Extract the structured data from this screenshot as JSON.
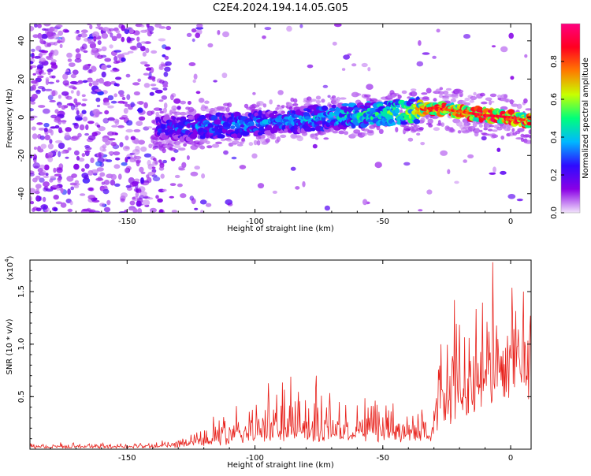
{
  "title": "C2E4.2024.194.14.05.G05",
  "chart_data": [
    {
      "type": "heatmap",
      "xlabel": "Height of straight line (km)",
      "ylabel": "Frequency (Hz)",
      "xlim": [
        -188,
        8
      ],
      "ylim": [
        -50,
        49
      ],
      "x_ticks": [
        -150,
        -100,
        -50,
        0
      ],
      "y_ticks": [
        -40,
        -20,
        0,
        20,
        40
      ],
      "colorbar": {
        "label": "Normalized spectral amplitude",
        "range": [
          0.0,
          1.0
        ],
        "ticks": [
          0.0,
          0.2,
          0.4,
          0.6,
          0.8
        ],
        "colormap": "rainbow",
        "stops": [
          "#f2e4fb",
          "#8a00e6",
          "#2e0bff",
          "#00b8ff",
          "#00ff7a",
          "#c8ff00",
          "#ff7a00",
          "#ff0020",
          "#ff0080"
        ]
      },
      "signal_trace": [
        {
          "x": -140,
          "y": -6,
          "a": 0.28
        },
        {
          "x": -130,
          "y": -6,
          "a": 0.32
        },
        {
          "x": -120,
          "y": -5,
          "a": 0.36
        },
        {
          "x": -110,
          "y": -4,
          "a": 0.38
        },
        {
          "x": -100,
          "y": -3,
          "a": 0.38
        },
        {
          "x": -90,
          "y": -2,
          "a": 0.36
        },
        {
          "x": -80,
          "y": -1,
          "a": 0.38
        },
        {
          "x": -70,
          "y": 0,
          "a": 0.42
        },
        {
          "x": -60,
          "y": 1,
          "a": 0.48
        },
        {
          "x": -50,
          "y": 2,
          "a": 0.52
        },
        {
          "x": -40,
          "y": 3,
          "a": 0.6
        },
        {
          "x": -30,
          "y": 5,
          "a": 0.88
        },
        {
          "x": -20,
          "y": 3,
          "a": 0.82
        },
        {
          "x": -10,
          "y": 1,
          "a": 0.92
        },
        {
          "x": 0,
          "y": 0,
          "a": 0.92
        },
        {
          "x": 7,
          "y": -2,
          "a": 0.85
        }
      ]
    },
    {
      "type": "line",
      "xlabel": "Height of straight line (km)",
      "ylabel": "SNR (10 * v/v)",
      "y_scale_label": "(x10",
      "y_scale_exponent": "4",
      "y_scale_suffix": ")",
      "xlim": [
        -188,
        8
      ],
      "ylim": [
        0,
        1.8
      ],
      "x_ticks": [
        -150,
        -100,
        -50,
        0
      ],
      "y_ticks": [
        0.5,
        1.0,
        1.5
      ],
      "series": [
        {
          "color": "#e8221c",
          "envelope": [
            {
              "x": -188,
              "base": 0.02,
              "amp": 0.03
            },
            {
              "x": -140,
              "base": 0.02,
              "amp": 0.03
            },
            {
              "x": -125,
              "base": 0.04,
              "amp": 0.08
            },
            {
              "x": -115,
              "base": 0.08,
              "amp": 0.18
            },
            {
              "x": -100,
              "base": 0.12,
              "amp": 0.28
            },
            {
              "x": -90,
              "base": 0.15,
              "amp": 0.4
            },
            {
              "x": -80,
              "base": 0.14,
              "amp": 0.4
            },
            {
              "x": -60,
              "base": 0.12,
              "amp": 0.33
            },
            {
              "x": -45,
              "base": 0.12,
              "amp": 0.25
            },
            {
              "x": -31,
              "base": 0.12,
              "amp": 0.22
            },
            {
              "x": -29,
              "base": 0.4,
              "amp": 0.5
            },
            {
              "x": -20,
              "base": 0.55,
              "amp": 0.7
            },
            {
              "x": -10,
              "base": 0.75,
              "amp": 0.6
            },
            {
              "x": 0,
              "base": 0.95,
              "amp": 0.45
            },
            {
              "x": 8,
              "base": 1.05,
              "amp": 0.4
            }
          ],
          "peaks": [
            {
              "x": -7,
              "y": 1.78
            },
            {
              "x": -22,
              "y": 1.42
            },
            {
              "x": 5,
              "y": 1.5
            },
            {
              "x": -86,
              "y": 0.69
            },
            {
              "x": -76,
              "y": 0.7
            }
          ]
        }
      ]
    }
  ]
}
